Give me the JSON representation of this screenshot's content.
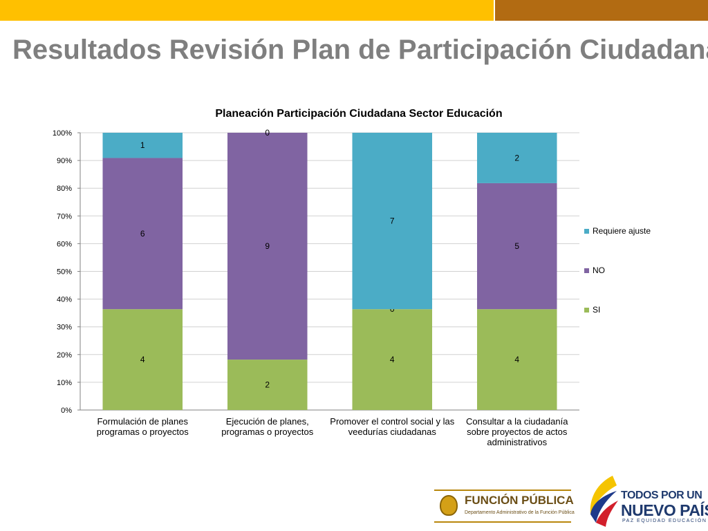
{
  "slide": {
    "title": "Resultados Revisión Plan de Participación Ciudadana"
  },
  "chart_data": {
    "type": "bar",
    "stacked": true,
    "percent": true,
    "title": "Planeación Participación Ciudadana Sector Educación",
    "categories": [
      [
        "Formulación de planes",
        "programas o proyectos"
      ],
      [
        "Ejecución de planes,",
        "programas o proyectos"
      ],
      [
        "Promover el control social y las",
        "veedurías ciudadanas"
      ],
      [
        "Consultar a la ciudadanía",
        "sobre proyectos de actos",
        "administrativos"
      ]
    ],
    "series": [
      {
        "name": "SI",
        "color": "#9BBB59",
        "values": [
          4,
          2,
          4,
          4
        ]
      },
      {
        "name": "NO",
        "color": "#8064A2",
        "values": [
          6,
          9,
          0,
          5
        ]
      },
      {
        "name": "Requiere ajuste",
        "color": "#4BACC6",
        "values": [
          1,
          0,
          7,
          2
        ]
      }
    ],
    "y_ticks": [
      "0%",
      "10%",
      "20%",
      "30%",
      "40%",
      "50%",
      "60%",
      "70%",
      "80%",
      "90%",
      "100%"
    ],
    "ylim": [
      0,
      100
    ],
    "grid": true,
    "legend": "right"
  },
  "logos": {
    "funcion_publica": {
      "title": "FUNCIÓN PÚBLICA",
      "subtitle": "Departamento Administrativo de la Función Pública"
    },
    "todos_por_un_nuevo_pais": {
      "line1": "TODOS POR UN",
      "line2": "NUEVO PAÍS",
      "line3": "PAZ  EQUIDAD  EDUCACIÓN"
    }
  }
}
